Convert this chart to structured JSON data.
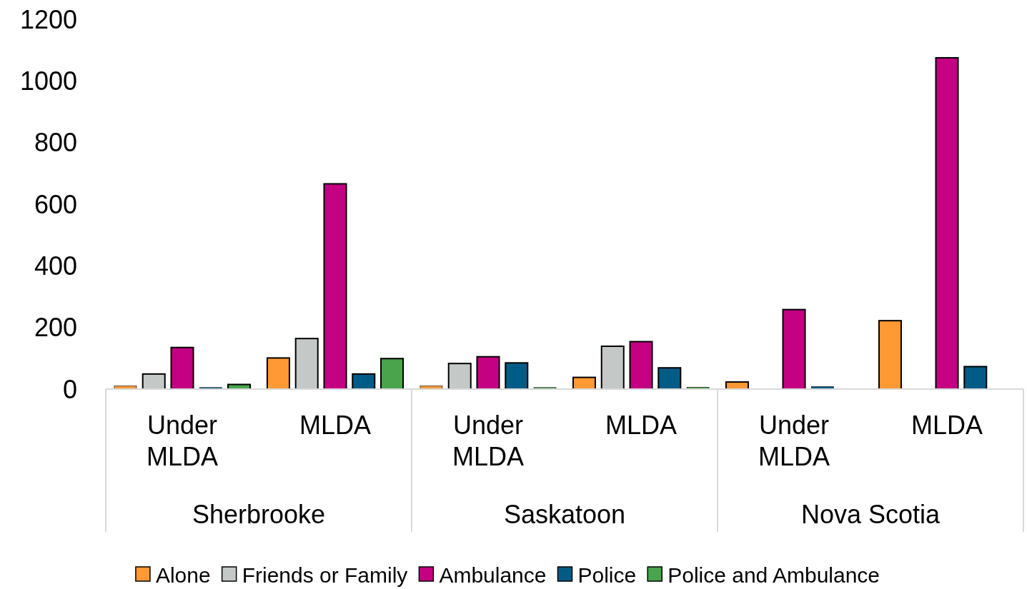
{
  "chart_data": {
    "type": "bar",
    "categories": [
      "Under MLDA",
      "MLDA",
      "Under MLDA",
      "MLDA",
      "Under MLDA",
      "MLDA"
    ],
    "annotations": [
      "Sherbrooke",
      "Saskatoon",
      "Nova Scotia"
    ],
    "series": [
      {
        "name": "Alone",
        "color": "#ff9933",
        "values": [
          10,
          101,
          10,
          38,
          23,
          222
        ]
      },
      {
        "name": "Friends or Family",
        "color": "#c4c9c8",
        "values": [
          49,
          164,
          83,
          139,
          null,
          null
        ]
      },
      {
        "name": "Ambulance",
        "color": "#c40083",
        "values": [
          135,
          666,
          105,
          154,
          258,
          1075
        ]
      },
      {
        "name": "Police",
        "color": "#005c87",
        "values": [
          5,
          49,
          85,
          69,
          8,
          73
        ]
      },
      {
        "name": "Police and Ambulance",
        "color": "#48a54b",
        "values": [
          15,
          99,
          5,
          6,
          null,
          null
        ]
      }
    ],
    "ylim": [
      0,
      1200
    ],
    "yticks": [
      0,
      200,
      400,
      600,
      800,
      1000,
      1200
    ],
    "grid": false,
    "legend": "bottom"
  }
}
